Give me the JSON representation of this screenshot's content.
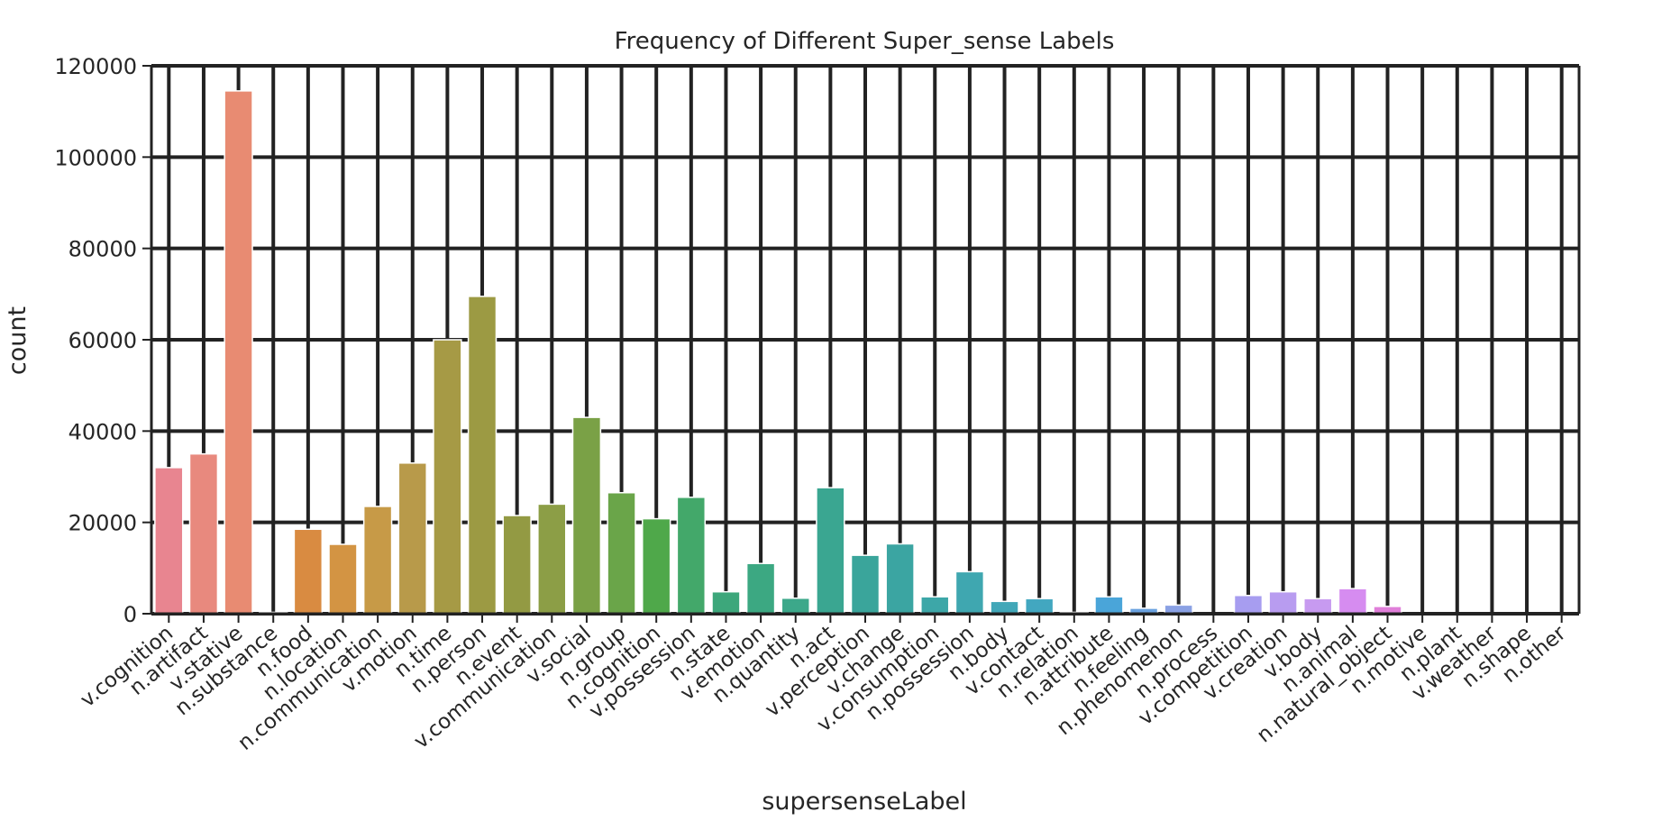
{
  "chart_data": {
    "type": "bar",
    "title": "Frequency of Different Super_sense Labels",
    "xlabel": "supersenseLabel",
    "ylabel": "count",
    "ylim": [
      0,
      120000
    ],
    "yticks": [
      0,
      20000,
      40000,
      60000,
      80000,
      100000,
      120000
    ],
    "ytick_labels": [
      "0",
      "20000",
      "40000",
      "60000",
      "80000",
      "100000",
      "120000"
    ],
    "grid": true,
    "legend": "none",
    "categories": [
      "v.cognition",
      "n.artifact",
      "v.stative",
      "n.substance",
      "n.food",
      "n.location",
      "n.communication",
      "v.motion",
      "n.time",
      "n.person",
      "n.event",
      "v.communication",
      "v.social",
      "n.group",
      "n.cognition",
      "v.possession",
      "n.state",
      "v.emotion",
      "n.quantity",
      "n.act",
      "v.perception",
      "v.change",
      "v.consumption",
      "n.possession",
      "n.body",
      "v.contact",
      "n.relation",
      "n.attribute",
      "n.feeling",
      "n.phenomenon",
      "n.process",
      "v.competition",
      "v.creation",
      "v.body",
      "n.animal",
      "n.natural_object",
      "n.motive",
      "n.plant",
      "v.weather",
      "n.shape",
      "n.other"
    ],
    "values": [
      32000,
      35000,
      114500,
      300,
      18500,
      15200,
      23500,
      33000,
      60000,
      69500,
      21500,
      24000,
      43000,
      26500,
      20800,
      25500,
      4800,
      11000,
      3400,
      27600,
      12800,
      15300,
      3700,
      9200,
      2700,
      3300,
      300,
      3700,
      1200,
      1900,
      100,
      4000,
      4800,
      3300,
      5500,
      1600,
      50,
      20,
      20,
      10,
      10
    ],
    "colors": [
      "#e88590",
      "#e8897e",
      "#e88b72",
      "#e08b66",
      "#d98b41",
      "#d39443",
      "#c79a47",
      "#b89a4a",
      "#a69a45",
      "#9c9a43",
      "#939a43",
      "#8c9e46",
      "#7aa146",
      "#6aa549",
      "#4fa84a",
      "#43a86a",
      "#3da77b",
      "#3ca882",
      "#3ca88a",
      "#3aa691",
      "#3aa59b",
      "#3ba5a2",
      "#3da7a8",
      "#3fa7b0",
      "#41a7b8",
      "#42a7c0",
      "#45a7cc",
      "#4aa5d9",
      "#6aa2e0",
      "#8aa1e4",
      "#9b9fe6",
      "#a79df0",
      "#b89cf0",
      "#c79af0",
      "#d68cf0",
      "#e07fd9",
      "#e78ac6",
      "#e88ab6",
      "#e88aa6",
      "#e88a9a",
      "#e88790"
    ]
  }
}
